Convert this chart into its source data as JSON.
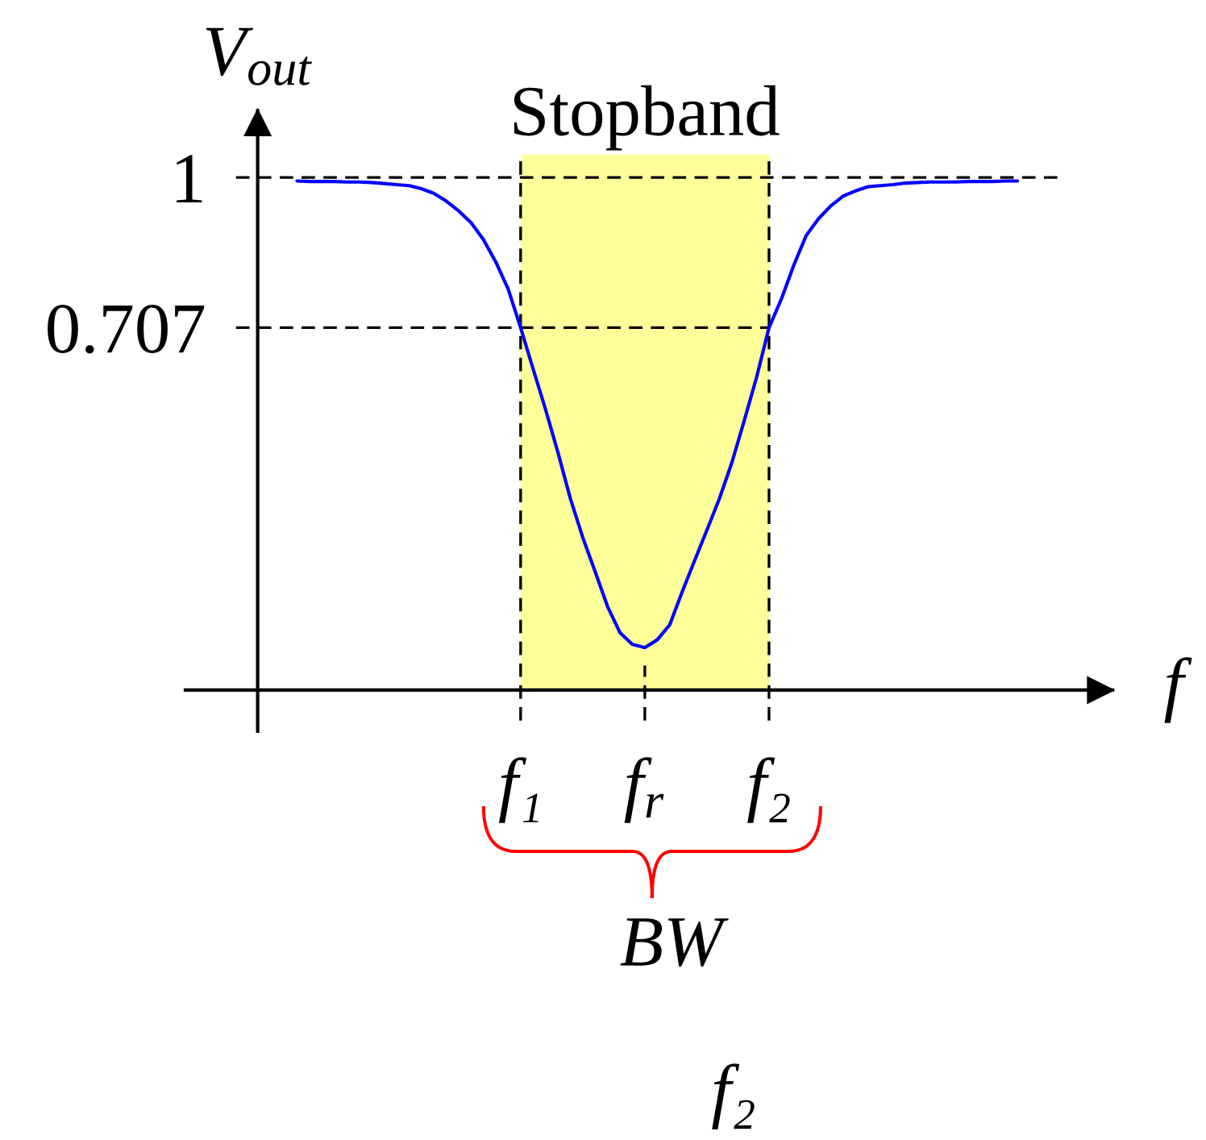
{
  "chart_data": {
    "type": "line",
    "xlabel": "f",
    "ylabel": "V$_{out}$",
    "categories": [
      null,
      null,
      null,
      null,
      null,
      null,
      null,
      null,
      null,
      null,
      null,
      null,
      null,
      null,
      null,
      null,
      null,
      null,
      "f₁",
      null,
      null,
      null,
      null,
      null,
      null,
      null,
      null,
      null,
      "f$_{r}$",
      null,
      null,
      null,
      null,
      null,
      null,
      null,
      null,
      null,
      "f₂",
      null,
      null,
      null,
      null,
      null,
      null,
      null,
      null,
      null,
      null,
      null,
      null,
      null,
      null,
      null,
      null,
      null,
      null,
      null,
      null
    ],
    "series": [
      {
        "color": "#0000ff",
        "values": [
          0.993,
          0.992,
          0.992,
          0.992,
          0.991,
          0.991,
          0.99,
          0.988,
          0.986,
          0.984,
          0.978,
          0.969,
          0.954,
          0.935,
          0.912,
          0.879,
          0.835,
          0.782,
          0.707,
          0.627,
          0.548,
          0.464,
          0.374,
          0.298,
          0.231,
          0.163,
          0.112,
          0.089,
          0.083,
          0.098,
          0.127,
          0.191,
          0.252,
          0.312,
          0.373,
          0.443,
          0.525,
          0.61,
          0.707,
          0.763,
          0.829,
          0.887,
          0.92,
          0.945,
          0.964,
          0.974,
          0.982,
          0.984,
          0.986,
          0.989,
          0.99,
          0.991,
          0.991,
          0.991,
          0.992,
          0.992,
          0.992,
          0.993,
          0.993
        ]
      }
    ],
    "ylim": [
      -0.08,
      1.13
    ],
    "yticks": [
      0.707,
      1
    ],
    "ref_lines": [
      {
        "axis": "y",
        "value": 1,
        "color": "#000000",
        "line_style": "dashed"
      },
      {
        "axis": "y",
        "value": 0.707,
        "color": "#000000",
        "line_style": "dashed"
      },
      {
        "axis": "x",
        "value": "f₁",
        "color": "#000000",
        "line_style": "dashed"
      },
      {
        "axis": "x",
        "value": "f$_{r}$",
        "color": "#000000",
        "line_style": "dashed"
      },
      {
        "axis": "x",
        "value": "f₂",
        "color": "#000000",
        "line_style": "dashed"
      }
    ],
    "bands": [
      {
        "axis": "x",
        "from": "f₁",
        "to": "f₂",
        "label": "Stopband",
        "color": "#ffff99"
      }
    ],
    "annotations": [
      "BW",
      "f₂"
    ]
  }
}
